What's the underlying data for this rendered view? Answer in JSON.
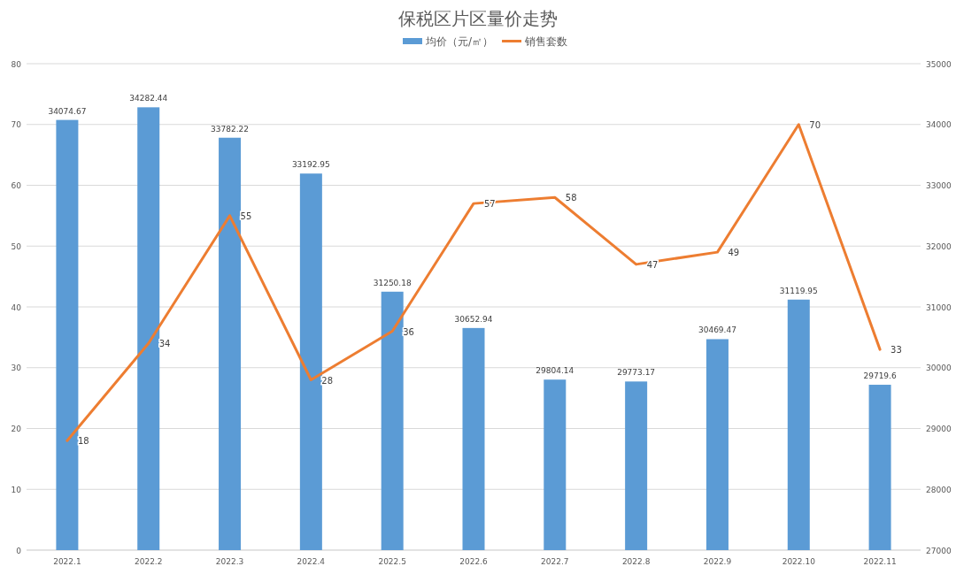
{
  "chart_data": {
    "type": "bar",
    "title": "保税区片区量价走势",
    "categories": [
      "2022.1",
      "2022.2",
      "2022.3",
      "2022.4",
      "2022.5",
      "2022.6",
      "2022.7",
      "2022.8",
      "2022.9",
      "2022.10",
      "2022.11"
    ],
    "series": [
      {
        "name": "均价（元/㎡）",
        "axis": "y2",
        "color": "#5b9bd5",
        "values": [
          34074.67,
          34282.44,
          33782.22,
          33192.95,
          31250.18,
          30652.94,
          29804.14,
          29773.17,
          30469.47,
          31119.95,
          29719.6
        ]
      },
      {
        "name": "销售套数",
        "type": "line",
        "axis": "y",
        "color": "#ed7d31",
        "values": [
          18,
          34,
          55,
          28,
          36,
          57,
          58,
          47,
          49,
          70,
          33
        ]
      }
    ],
    "ylim": [
      0,
      80
    ],
    "yticks": [
      0,
      10,
      20,
      30,
      40,
      50,
      60,
      70,
      80
    ],
    "y2lim": [
      27000,
      35000
    ],
    "y2ticks": [
      27000,
      28000,
      29000,
      30000,
      31000,
      32000,
      33000,
      34000,
      35000
    ],
    "grid": "y",
    "legend": "top",
    "data_labels": true,
    "line_style": "solid",
    "marker": "none"
  }
}
